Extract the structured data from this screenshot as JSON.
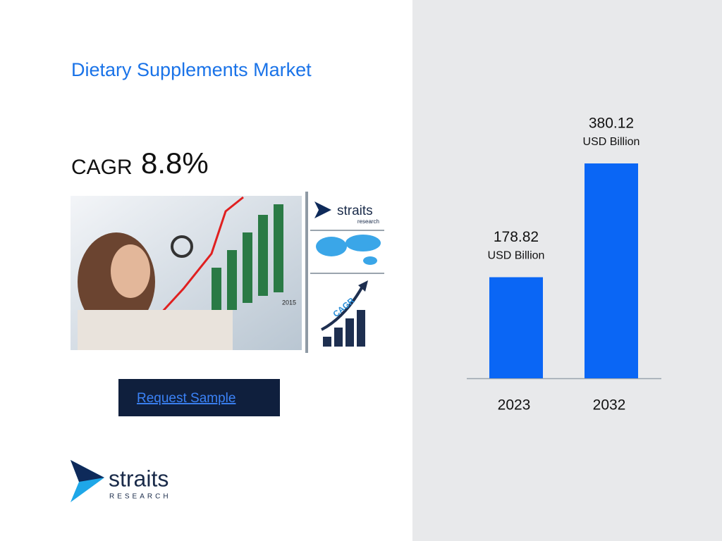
{
  "title": "Dietary Supplements Market",
  "cagr": {
    "label": "CAGR",
    "value": "8.8%"
  },
  "side_panel": {
    "logo_name": "straits",
    "logo_sub": "research",
    "badge": "CAGR",
    "year": "2015"
  },
  "button": "Request Sample",
  "logo": {
    "name": "straits",
    "sub": "RESEARCH"
  },
  "chart_data": {
    "type": "bar",
    "categories": [
      "2023",
      "2032"
    ],
    "values": [
      178.82,
      380.12
    ],
    "unit": "USD Billion",
    "color": "#0a66f5"
  }
}
